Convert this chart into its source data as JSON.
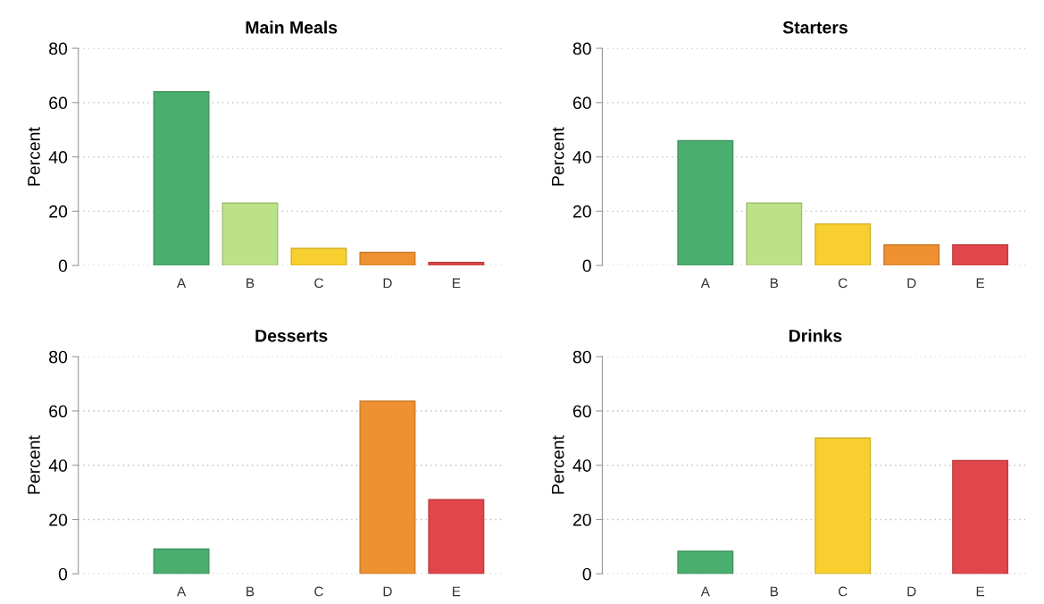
{
  "chart_data": [
    {
      "type": "bar",
      "title": "Main Meals",
      "ylabel": "Percent",
      "categories": [
        "A",
        "B",
        "C",
        "D",
        "E"
      ],
      "values": [
        64,
        23,
        6.3,
        4.8,
        1.1
      ],
      "colors": [
        "#4aae6f",
        "#bce287",
        "#f7cf2f",
        "#ef9130",
        "#e0464a"
      ],
      "ylim": [
        0,
        80
      ],
      "yticks": [
        0,
        20,
        40,
        60,
        80
      ],
      "grid": "y"
    },
    {
      "type": "bar",
      "title": "Starters",
      "ylabel": "Percent",
      "categories": [
        "A",
        "B",
        "C",
        "D",
        "E"
      ],
      "values": [
        46,
        23,
        15.3,
        7.6,
        7.6
      ],
      "colors": [
        "#4aae6f",
        "#bce287",
        "#f7cf2f",
        "#ef9130",
        "#e0464a"
      ],
      "ylim": [
        0,
        80
      ],
      "yticks": [
        0,
        20,
        40,
        60,
        80
      ],
      "grid": "y"
    },
    {
      "type": "bar",
      "title": "Desserts",
      "ylabel": "Percent",
      "categories": [
        "A",
        "B",
        "C",
        "D",
        "E"
      ],
      "values": [
        9.1,
        null,
        null,
        63.6,
        27.3
      ],
      "colors": [
        "#4aae6f",
        "#bce287",
        "#f7cf2f",
        "#ef9130",
        "#e0464a"
      ],
      "ylim": [
        0,
        80
      ],
      "yticks": [
        0,
        20,
        40,
        60,
        80
      ],
      "grid": "y"
    },
    {
      "type": "bar",
      "title": "Drinks",
      "ylabel": "Percent",
      "categories": [
        "A",
        "B",
        "C",
        "D",
        "E"
      ],
      "values": [
        8.3,
        null,
        50,
        null,
        41.7
      ],
      "colors": [
        "#4aae6f",
        "#bce287",
        "#f7cf2f",
        "#ef9130",
        "#e0464a"
      ],
      "ylim": [
        0,
        80
      ],
      "yticks": [
        0,
        20,
        40,
        60,
        80
      ],
      "grid": "y"
    }
  ]
}
